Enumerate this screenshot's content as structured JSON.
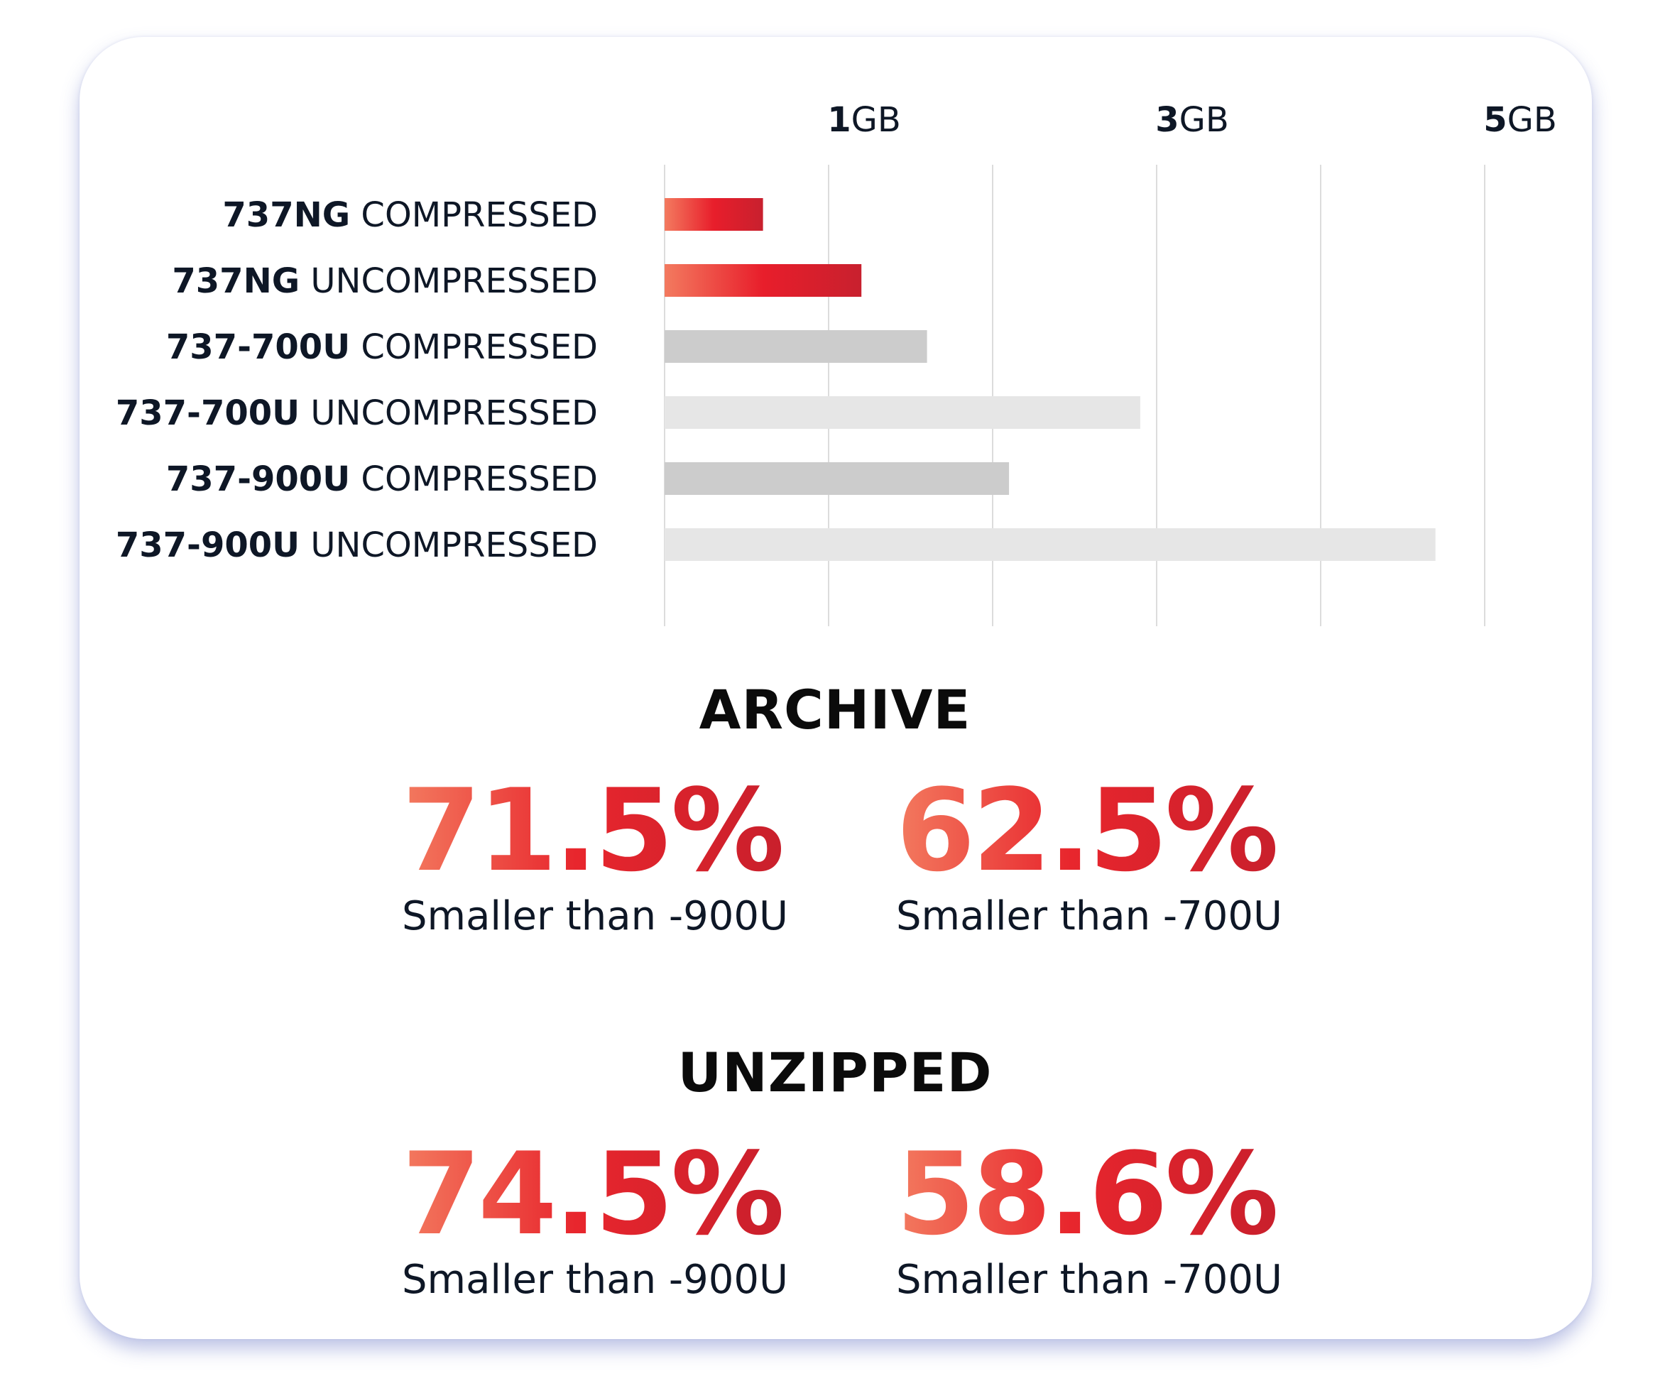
{
  "chart_data": {
    "type": "bar",
    "orientation": "horizontal",
    "unit": "GB",
    "categories": [
      {
        "bold": "737NG",
        "rest": "COMPRESSED"
      },
      {
        "bold": "737NG",
        "rest": "UNCOMPRESSED"
      },
      {
        "bold": "737-700U",
        "rest": "COMPRESSED"
      },
      {
        "bold": "737-700U",
        "rest": "UNCOMPRESSED"
      },
      {
        "bold": "737-900U",
        "rest": "COMPRESSED"
      },
      {
        "bold": "737-900U",
        "rest": "UNCOMPRESSED"
      }
    ],
    "values": [
      0.6,
      1.2,
      1.6,
      2.9,
      2.1,
      4.7
    ],
    "bar_styles": [
      "highlight",
      "highlight",
      "mid-gray",
      "light-gray",
      "mid-gray",
      "light-gray"
    ],
    "xlim": [
      0,
      5
    ],
    "gridlines": [
      0,
      1,
      2,
      3,
      4,
      5
    ],
    "ticks": [
      {
        "value": 1,
        "num": "1",
        "unit": "GB"
      },
      {
        "value": 3,
        "num": "3",
        "unit": "GB"
      },
      {
        "value": 5,
        "num": "5",
        "unit": "GB"
      }
    ],
    "grid": true
  },
  "colors": {
    "highlight_start": "#f37a5f",
    "highlight_mid": "#e81e2b",
    "highlight_end": "#c8202e",
    "mid_gray": "#cccccc",
    "light_gray": "#e6e6e6",
    "gridline": "#dcdcdc"
  },
  "sections": [
    {
      "title": "ARCHIVE",
      "stats": [
        {
          "value": "71.5%",
          "caption": "Smaller than -900U"
        },
        {
          "value": "62.5%",
          "caption": "Smaller than -700U"
        }
      ]
    },
    {
      "title": "UNZIPPED",
      "stats": [
        {
          "value": "74.5%",
          "caption": "Smaller than -900U"
        },
        {
          "value": "58.6%",
          "caption": "Smaller than -700U"
        }
      ]
    }
  ]
}
